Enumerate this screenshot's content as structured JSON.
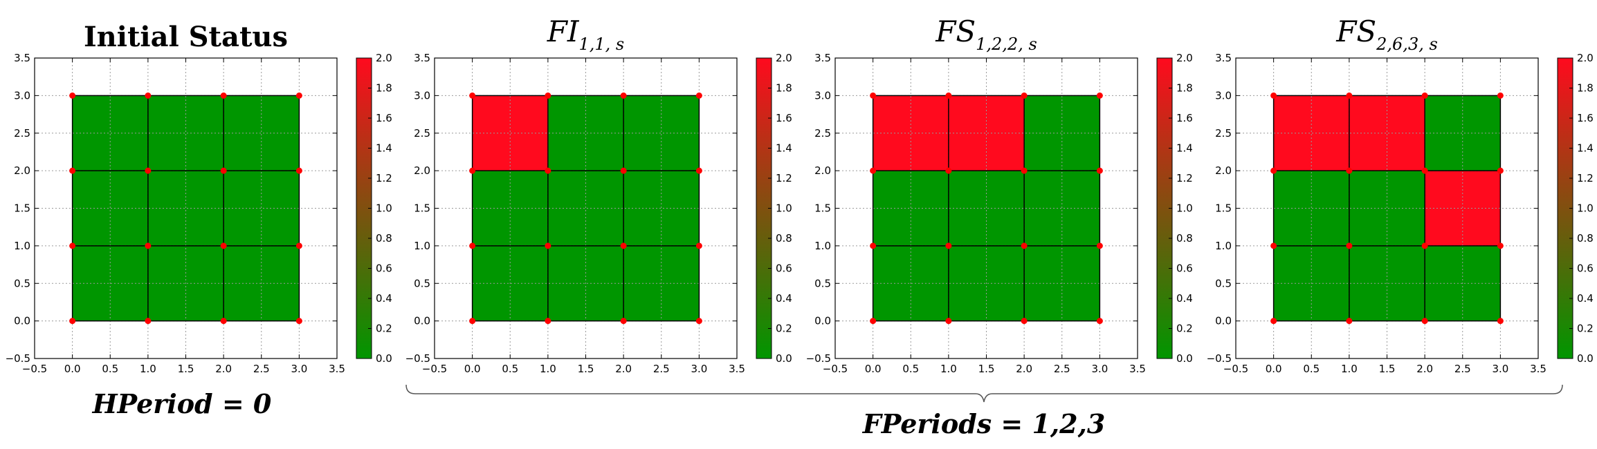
{
  "colors": {
    "healthy": "#009600",
    "failed": "#ff0a1e",
    "node": "#ff0000",
    "grid": "#9a9a9a",
    "colorbar_low": "#009600",
    "colorbar_high": "#ff0a1e"
  },
  "chart_data": [
    {
      "type": "heatmap",
      "title": "Initial Status",
      "title_style": "bold",
      "xlim": [
        -0.5,
        3.5
      ],
      "ylim": [
        -0.5,
        3.5
      ],
      "xticks": [
        "−0.5",
        "0.0",
        "0.5",
        "1.0",
        "1.5",
        "2.0",
        "2.5",
        "3.0",
        "3.5"
      ],
      "yticks": [
        "−0.5",
        "0.0",
        "0.5",
        "1.0",
        "1.5",
        "2.0",
        "2.5",
        "3.0",
        "3.5"
      ],
      "grid": true,
      "cells": [
        [
          0,
          0,
          0
        ],
        [
          0,
          0,
          0
        ],
        [
          0,
          0,
          0
        ]
      ],
      "nodes": [
        0,
        1,
        2,
        3
      ],
      "colorbar": {
        "min": 0.0,
        "max": 2.0,
        "ticks": [
          "0.0",
          "0.2",
          "0.4",
          "0.6",
          "0.8",
          "1.0",
          "1.2",
          "1.4",
          "1.6",
          "1.8",
          "2.0"
        ]
      }
    },
    {
      "type": "heatmap",
      "title_main": "FI",
      "title_sub": "1,1, s",
      "title_style": "italic",
      "xlim": [
        -0.5,
        3.5
      ],
      "ylim": [
        -0.5,
        3.5
      ],
      "xticks": [
        "−0.5",
        "0.0",
        "0.5",
        "1.0",
        "1.5",
        "2.0",
        "2.5",
        "3.0",
        "3.5"
      ],
      "yticks": [
        "−0.5",
        "0.0",
        "0.5",
        "1.0",
        "1.5",
        "2.0",
        "2.5",
        "3.0",
        "3.5"
      ],
      "grid": true,
      "cells": [
        [
          2,
          0,
          0
        ],
        [
          0,
          0,
          0
        ],
        [
          0,
          0,
          0
        ]
      ],
      "nodes": [
        0,
        1,
        2,
        3
      ],
      "colorbar": {
        "min": 0.0,
        "max": 2.0,
        "ticks": [
          "0.0",
          "0.2",
          "0.4",
          "0.6",
          "0.8",
          "1.0",
          "1.2",
          "1.4",
          "1.6",
          "1.8",
          "2.0"
        ]
      }
    },
    {
      "type": "heatmap",
      "title_main": "FS",
      "title_sub": "1,2,2, s",
      "title_style": "italic",
      "xlim": [
        -0.5,
        3.5
      ],
      "ylim": [
        -0.5,
        3.5
      ],
      "xticks": [
        "−0.5",
        "0.0",
        "0.5",
        "1.0",
        "1.5",
        "2.0",
        "2.5",
        "3.0",
        "3.5"
      ],
      "yticks": [
        "−0.5",
        "0.0",
        "0.5",
        "1.0",
        "1.5",
        "2.0",
        "2.5",
        "3.0",
        "3.5"
      ],
      "grid": true,
      "cells": [
        [
          2,
          2,
          0
        ],
        [
          0,
          0,
          0
        ],
        [
          0,
          0,
          0
        ]
      ],
      "nodes": [
        0,
        1,
        2,
        3
      ],
      "colorbar": {
        "min": 0.0,
        "max": 2.0,
        "ticks": [
          "0.0",
          "0.2",
          "0.4",
          "0.6",
          "0.8",
          "1.0",
          "1.2",
          "1.4",
          "1.6",
          "1.8",
          "2.0"
        ]
      }
    },
    {
      "type": "heatmap",
      "title_main": "FS",
      "title_sub": "2,6,3, s",
      "title_style": "italic",
      "xlim": [
        -0.5,
        3.5
      ],
      "ylim": [
        -0.5,
        3.5
      ],
      "xticks": [
        "−0.5",
        "0.0",
        "0.5",
        "1.0",
        "1.5",
        "2.0",
        "2.5",
        "3.0",
        "3.5"
      ],
      "yticks": [
        "−0.5",
        "0.0",
        "0.5",
        "1.0",
        "1.5",
        "2.0",
        "2.5",
        "3.0",
        "3.5"
      ],
      "grid": true,
      "cells": [
        [
          2,
          2,
          0
        ],
        [
          0,
          0,
          2
        ],
        [
          0,
          0,
          0
        ]
      ],
      "nodes": [
        0,
        1,
        2,
        3
      ],
      "colorbar": {
        "min": 0.0,
        "max": 2.0,
        "ticks": [
          "0.0",
          "0.2",
          "0.4",
          "0.6",
          "0.8",
          "1.0",
          "1.2",
          "1.4",
          "1.6",
          "1.8",
          "2.0"
        ]
      }
    }
  ],
  "annotations": {
    "hperiod": "HPeriod = 0",
    "fperiods": "FPeriods = 1,2,3"
  }
}
